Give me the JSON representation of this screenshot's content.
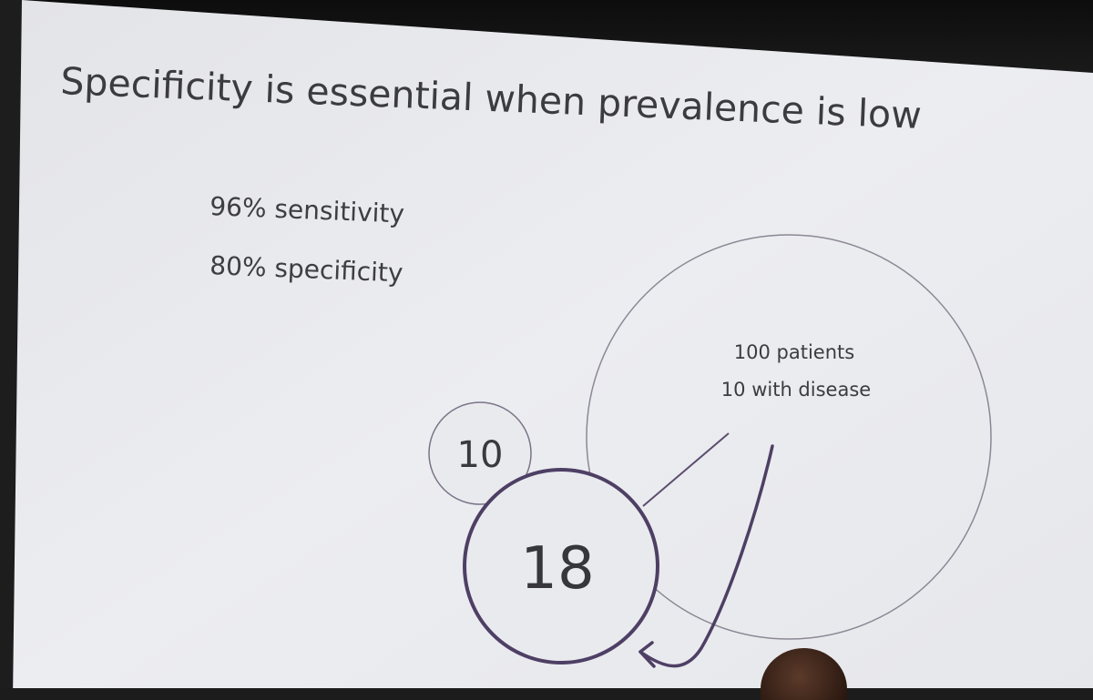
{
  "slide": {
    "title": "Specificity is essential when prevalence is low",
    "stats": [
      "96% sensitivity",
      "80% specificity"
    ],
    "population_circle": {
      "line1": "100 patients",
      "line2": "10 with disease"
    },
    "true_positive_value": "10",
    "false_positive_value": "18"
  },
  "colors": {
    "slide_background": "#e9eaee",
    "text": "#3a3a3e",
    "thin_circle_stroke": "#8c8794",
    "accent_purple": "#4e3f64"
  }
}
